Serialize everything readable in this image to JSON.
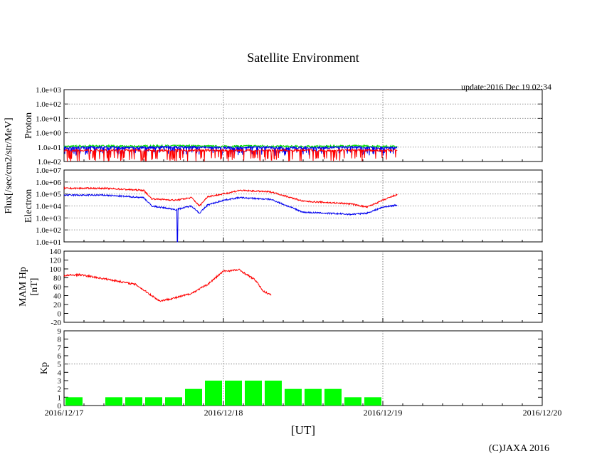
{
  "title": "Satellite Environment",
  "update": "update:2016 Dec 19 02:34",
  "copyright": "(C)JAXA 2016",
  "xlabel": "[UT]",
  "x_ticks": [
    "2016/12/17",
    "2016/12/18",
    "2016/12/19",
    "2016/12/20"
  ],
  "chart_data": [
    {
      "type": "line",
      "panel": "proton",
      "ylabel": "Proton",
      "shared_ylabel": "Flux[/sec/cm2/str/MeV]",
      "yscale": "log",
      "ylim": [
        0.01,
        1000
      ],
      "y_ticks": [
        "1.0e-02",
        "1.0e-01",
        "1.0e+00",
        "1.0e+01",
        "1.0e+02",
        "1.0e+03"
      ],
      "series": [
        {
          "color": "#00dd00",
          "x_days": [
            0,
            0.2,
            0.4,
            0.6,
            0.8,
            1.0,
            1.2,
            1.4,
            1.6,
            1.8,
            2.09
          ],
          "values": [
            0.11,
            0.12,
            0.11,
            0.12,
            0.12,
            0.11,
            0.12,
            0.11,
            0.11,
            0.12,
            0.11
          ]
        },
        {
          "color": "#0000ee",
          "x_days": [
            0,
            0.2,
            0.4,
            0.6,
            0.8,
            1.0,
            1.2,
            1.4,
            1.6,
            1.8,
            2.09
          ],
          "values": [
            0.09,
            0.1,
            0.09,
            0.1,
            0.1,
            0.09,
            0.1,
            0.09,
            0.09,
            0.1,
            0.09
          ],
          "noisy_down_to": 0.025
        },
        {
          "color": "#ff0000",
          "x_days": [
            0,
            0.2,
            0.4,
            0.6,
            0.8,
            1.0,
            1.2,
            1.4,
            1.6,
            1.8,
            2.09
          ],
          "values": [
            0.06,
            0.06,
            0.06,
            0.06,
            0.06,
            0.06,
            0.06,
            0.06,
            0.06,
            0.06,
            0.06
          ],
          "noisy_down_to": 0.01
        }
      ]
    },
    {
      "type": "line",
      "panel": "electron",
      "ylabel": "Electron",
      "yscale": "log",
      "ylim": [
        10,
        10000000
      ],
      "y_ticks": [
        "1.0e+01",
        "1.0e+02",
        "1.0e+03",
        "1.0e+04",
        "1.0e+05",
        "1.0e+06",
        "1.0e+07"
      ],
      "series": [
        {
          "color": "#ff0000",
          "x_days": [
            0,
            0.25,
            0.5,
            0.55,
            0.7,
            0.8,
            0.85,
            0.9,
            1.0,
            1.1,
            1.3,
            1.5,
            1.8,
            1.9,
            2.0,
            2.09
          ],
          "values": [
            300000,
            300000,
            200000,
            40000,
            30000,
            50000,
            10000,
            60000,
            100000,
            200000,
            150000,
            25000,
            15000,
            8000,
            30000,
            90000
          ]
        },
        {
          "color": "#0000ee",
          "x_days": [
            0,
            0.25,
            0.5,
            0.55,
            0.7,
            0.8,
            0.85,
            0.9,
            1.0,
            1.1,
            1.3,
            1.5,
            1.8,
            1.9,
            2.0,
            2.09
          ],
          "values": [
            80000,
            80000,
            50000,
            10000,
            5000,
            10000,
            2500,
            12000,
            30000,
            50000,
            35000,
            3000,
            2000,
            2500,
            8000,
            12000
          ],
          "dip": {
            "x_days": 0.71,
            "value": 10
          }
        }
      ]
    },
    {
      "type": "line",
      "panel": "mam_hp",
      "ylabel": "MAM Hp [nT]",
      "ylim": [
        -20,
        140
      ],
      "y_ticks": [
        "-20",
        "0",
        "20",
        "40",
        "60",
        "80",
        "100",
        "120",
        "140"
      ],
      "series": [
        {
          "color": "#ff0000",
          "x_days": [
            0,
            0.1,
            0.3,
            0.45,
            0.55,
            0.6,
            0.7,
            0.8,
            0.9,
            1.0,
            1.1,
            1.2,
            1.25,
            1.3
          ],
          "values": [
            85,
            87,
            75,
            65,
            40,
            28,
            35,
            45,
            65,
            95,
            98,
            75,
            50,
            41
          ]
        }
      ]
    },
    {
      "type": "bar",
      "panel": "kp",
      "ylabel": "Kp",
      "ylim": [
        0,
        9
      ],
      "y_ticks": [
        "0",
        "1",
        "2",
        "3",
        "4",
        "5",
        "6",
        "7",
        "8",
        "9"
      ],
      "dotted_y": 5,
      "bar_color": "#00ff00",
      "bin_hours": 3,
      "values": [
        1,
        0,
        1,
        1,
        1,
        1,
        2,
        3,
        3,
        3,
        3,
        2,
        2,
        2,
        1,
        1
      ]
    }
  ]
}
